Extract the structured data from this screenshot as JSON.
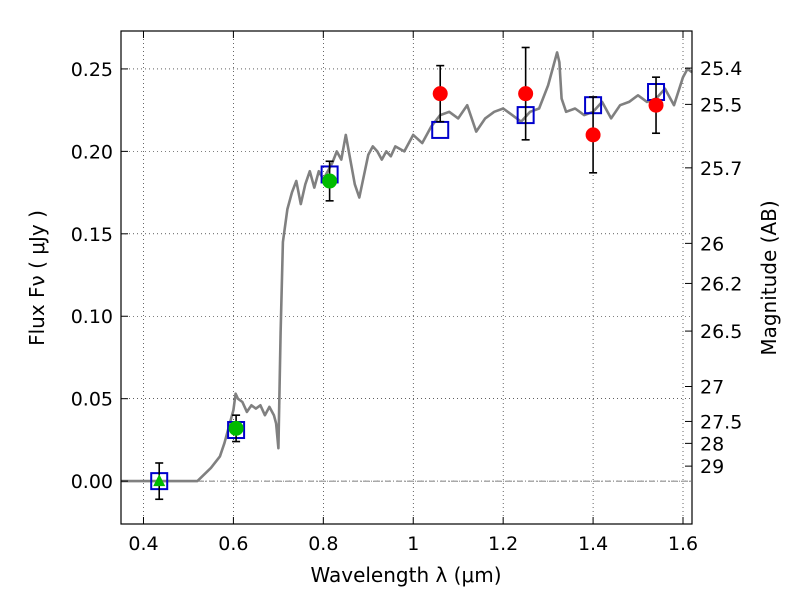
{
  "chart_data": {
    "type": "scatter",
    "title": "",
    "xlabel": "Wavelength  λ (μm)",
    "ylabel": "Flux  Fν  ( μJy )",
    "y2label": "Magnitude (AB)",
    "xlim": [
      0.35,
      1.62
    ],
    "ylim": [
      -0.026,
      0.273
    ],
    "grid": true,
    "x_ticks": [
      {
        "value": 0.4,
        "label": "0.4"
      },
      {
        "value": 0.6,
        "label": "0.6"
      },
      {
        "value": 0.8,
        "label": "0.8"
      },
      {
        "value": 1.0,
        "label": "1"
      },
      {
        "value": 1.2,
        "label": "1.2"
      },
      {
        "value": 1.4,
        "label": "1.4"
      },
      {
        "value": 1.6,
        "label": "1.6"
      }
    ],
    "y_ticks": [
      {
        "value": 0.0,
        "label": "0.00"
      },
      {
        "value": 0.05,
        "label": "0.05"
      },
      {
        "value": 0.1,
        "label": "0.10"
      },
      {
        "value": 0.15,
        "label": "0.15"
      },
      {
        "value": 0.2,
        "label": "0.20"
      },
      {
        "value": 0.25,
        "label": "0.25"
      }
    ],
    "magnitude_ticks": [
      {
        "label": "25.4",
        "flux": 0.2505
      },
      {
        "label": "25.5",
        "flux": 0.2285
      },
      {
        "label": "25.7",
        "flux": 0.19
      },
      {
        "label": "26",
        "flux": 0.1442
      },
      {
        "label": "26.2",
        "flux": 0.1199
      },
      {
        "label": "26.5",
        "flux": 0.091
      },
      {
        "label": "27",
        "flux": 0.0574
      },
      {
        "label": "27.5",
        "flux": 0.0362
      },
      {
        "label": "28",
        "flux": 0.0229
      },
      {
        "label": "29",
        "flux": 0.0091
      }
    ],
    "series": [
      {
        "kind": "model_spectrum",
        "color": "#808080",
        "x": [
          0.35,
          0.52,
          0.55,
          0.57,
          0.58,
          0.59,
          0.6,
          0.605,
          0.61,
          0.62,
          0.63,
          0.64,
          0.65,
          0.66,
          0.67,
          0.68,
          0.69,
          0.695,
          0.7,
          0.705,
          0.71,
          0.72,
          0.73,
          0.74,
          0.75,
          0.76,
          0.77,
          0.78,
          0.79,
          0.8,
          0.81,
          0.82,
          0.83,
          0.84,
          0.85,
          0.86,
          0.87,
          0.88,
          0.89,
          0.9,
          0.91,
          0.92,
          0.93,
          0.94,
          0.95,
          0.96,
          0.98,
          1.0,
          1.02,
          1.04,
          1.06,
          1.08,
          1.1,
          1.12,
          1.14,
          1.16,
          1.18,
          1.2,
          1.22,
          1.24,
          1.26,
          1.28,
          1.3,
          1.32,
          1.325,
          1.33,
          1.34,
          1.36,
          1.38,
          1.4,
          1.42,
          1.44,
          1.46,
          1.48,
          1.5,
          1.52,
          1.54,
          1.56,
          1.58,
          1.6,
          1.61,
          1.62
        ],
        "y": [
          0.0,
          0.0,
          0.008,
          0.015,
          0.023,
          0.033,
          0.043,
          0.053,
          0.05,
          0.048,
          0.042,
          0.046,
          0.044,
          0.046,
          0.04,
          0.045,
          0.04,
          0.035,
          0.02,
          0.09,
          0.145,
          0.165,
          0.175,
          0.182,
          0.168,
          0.18,
          0.188,
          0.178,
          0.188,
          0.183,
          0.188,
          0.193,
          0.2,
          0.195,
          0.21,
          0.195,
          0.18,
          0.172,
          0.185,
          0.198,
          0.203,
          0.2,
          0.195,
          0.2,
          0.197,
          0.203,
          0.2,
          0.21,
          0.205,
          0.215,
          0.222,
          0.224,
          0.22,
          0.228,
          0.212,
          0.22,
          0.224,
          0.226,
          0.222,
          0.218,
          0.224,
          0.226,
          0.24,
          0.26,
          0.254,
          0.232,
          0.224,
          0.226,
          0.222,
          0.224,
          0.23,
          0.22,
          0.228,
          0.23,
          0.234,
          0.23,
          0.232,
          0.238,
          0.228,
          0.245,
          0.25,
          0.248
        ]
      },
      {
        "kind": "model_photometry",
        "marker": "open-square",
        "color": "#0000cc",
        "x": [
          0.435,
          0.606,
          0.814,
          1.06,
          1.25,
          1.4,
          1.54
        ],
        "y": [
          0.0,
          0.031,
          0.186,
          0.213,
          0.222,
          0.228,
          0.236
        ]
      },
      {
        "kind": "observed_photometry",
        "marker": "circle",
        "color": "#00bb00",
        "x": [
          0.606,
          0.814
        ],
        "y": [
          0.032,
          0.182
        ],
        "err": [
          0.008,
          0.012
        ]
      },
      {
        "kind": "observed_photometry",
        "marker": "circle",
        "color": "#ff0000",
        "x": [
          1.06,
          1.25,
          1.4,
          1.54
        ],
        "y": [
          0.235,
          0.235,
          0.21,
          0.228
        ],
        "err": [
          0.017,
          0.028,
          0.023,
          0.017
        ]
      },
      {
        "kind": "upper_limit",
        "marker": "triangle",
        "color": "#00bb00",
        "x": [
          0.435
        ],
        "y": [
          0.0
        ],
        "err": [
          0.011
        ]
      }
    ]
  }
}
